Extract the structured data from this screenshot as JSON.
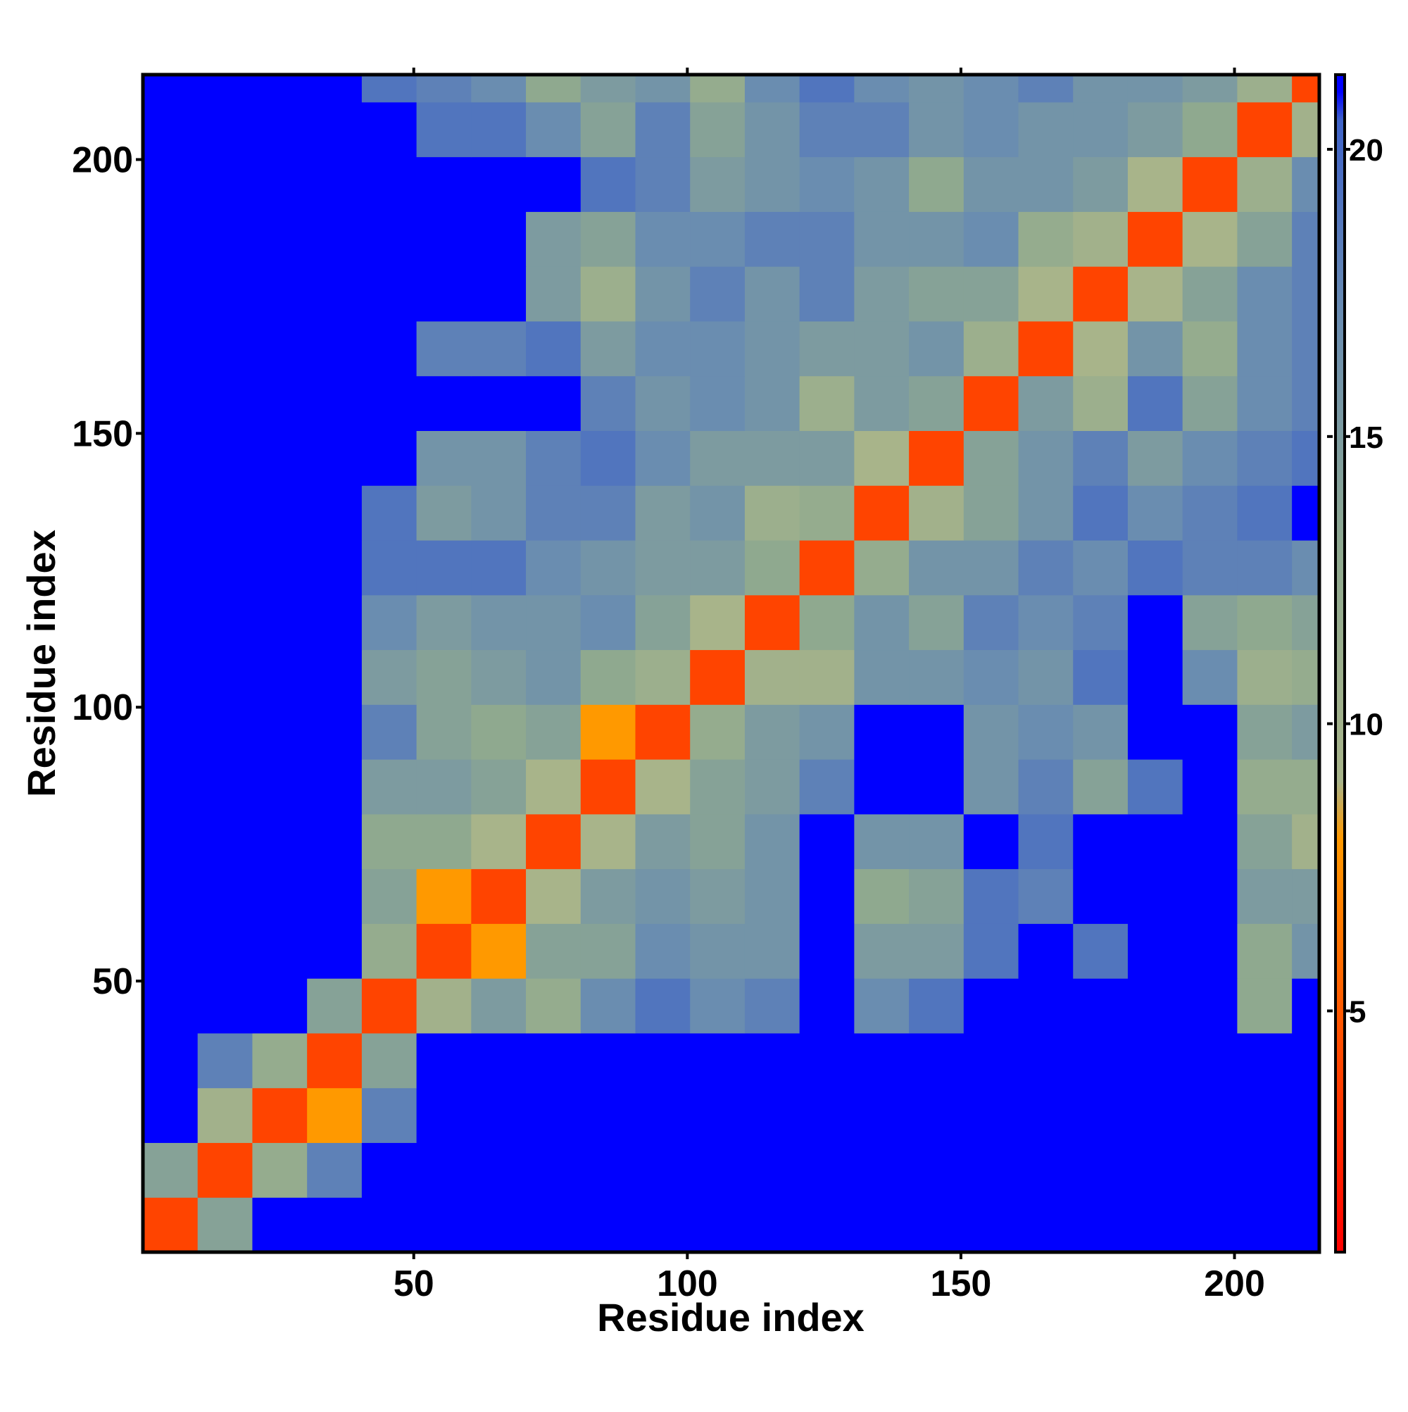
{
  "chart_data": {
    "type": "heatmap",
    "xlabel": "Residue index",
    "ylabel": "Residue index",
    "xlim": [
      0.5,
      215.5
    ],
    "ylim": [
      0.5,
      215.5
    ],
    "xticks": [
      50,
      100,
      150,
      200
    ],
    "yticks": [
      50,
      100,
      150,
      200
    ],
    "x_bins": [
      0.5,
      10.5,
      20.5,
      30.5,
      40.5,
      50.5,
      60.5,
      70.5,
      80.5,
      90.5,
      100.5,
      110.5,
      120.5,
      130.5,
      140.5,
      150.5,
      160.5,
      170.5,
      180.5,
      190.5,
      200.5,
      210.5,
      215.5
    ],
    "y_bins": [
      0.5,
      10.5,
      20.5,
      30.5,
      40.5,
      50.5,
      60.5,
      70.5,
      80.5,
      90.5,
      100.5,
      110.5,
      120.5,
      130.5,
      140.5,
      150.5,
      160.5,
      170.5,
      180.5,
      190.5,
      200.5,
      210.5,
      215.5
    ],
    "values": [
      [
        4,
        14,
        21,
        21,
        21,
        21,
        21,
        21,
        21,
        21,
        21,
        21,
        21,
        21,
        21,
        21,
        21,
        21,
        21,
        21,
        21,
        21
      ],
      [
        14,
        4,
        12,
        18,
        21,
        21,
        21,
        21,
        21,
        21,
        21,
        21,
        21,
        21,
        21,
        21,
        21,
        21,
        21,
        21,
        21,
        21
      ],
      [
        21,
        10,
        4,
        8,
        18,
        21,
        21,
        21,
        21,
        21,
        21,
        21,
        21,
        21,
        21,
        21,
        21,
        21,
        21,
        21,
        21,
        21
      ],
      [
        21,
        18,
        12,
        4,
        14,
        21,
        21,
        21,
        21,
        21,
        21,
        21,
        21,
        21,
        21,
        21,
        21,
        21,
        21,
        21,
        21,
        21
      ],
      [
        21,
        21,
        21,
        14,
        4,
        10,
        15,
        12,
        17,
        19,
        17,
        18,
        21,
        17,
        19,
        21,
        21,
        21,
        21,
        21,
        13,
        21
      ],
      [
        21,
        21,
        21,
        21,
        12,
        4,
        8,
        14,
        14,
        17,
        16,
        16,
        21,
        15,
        15,
        19,
        21,
        19,
        21,
        21,
        13,
        16
      ],
      [
        21,
        21,
        21,
        21,
        14,
        8,
        4,
        9,
        15,
        16,
        15,
        16,
        21,
        13,
        14,
        19,
        18,
        21,
        21,
        21,
        15,
        15
      ],
      [
        21,
        21,
        21,
        21,
        13,
        13,
        9,
        4,
        9,
        15,
        14,
        16,
        21,
        16,
        16,
        21,
        19,
        21,
        21,
        21,
        14,
        10
      ],
      [
        21,
        21,
        21,
        21,
        15,
        15,
        14,
        9,
        4,
        9,
        14,
        15,
        18,
        21,
        21,
        16,
        18,
        14,
        19,
        21,
        12,
        12
      ],
      [
        21,
        21,
        21,
        21,
        18,
        14,
        13,
        14,
        8,
        4,
        12,
        15,
        16,
        21,
        21,
        16,
        17,
        16,
        21,
        21,
        14,
        15
      ],
      [
        21,
        21,
        21,
        21,
        15,
        14,
        15,
        16,
        13,
        11,
        4,
        10,
        10,
        16,
        16,
        17,
        16,
        19,
        21,
        17,
        11,
        12
      ],
      [
        21,
        21,
        21,
        21,
        17,
        15,
        16,
        16,
        17,
        14,
        9,
        4,
        13,
        16,
        14,
        18,
        17,
        18,
        21,
        14,
        13,
        14
      ],
      [
        21,
        21,
        21,
        21,
        19,
        19,
        19,
        17,
        16,
        15,
        15,
        13,
        4,
        12,
        16,
        16,
        18,
        17,
        19,
        18,
        18,
        17
      ],
      [
        21,
        21,
        21,
        21,
        19,
        15,
        16,
        18,
        18,
        15,
        16,
        11,
        12,
        4,
        10,
        14,
        16,
        19,
        17,
        18,
        19,
        21
      ],
      [
        21,
        21,
        21,
        21,
        21,
        16,
        16,
        18,
        19,
        17,
        15,
        15,
        15,
        9,
        4,
        14,
        16,
        18,
        15,
        17,
        18,
        19
      ],
      [
        21,
        21,
        21,
        21,
        21,
        21,
        21,
        21,
        18,
        16,
        17,
        16,
        11,
        15,
        14,
        4,
        15,
        11,
        19,
        14,
        17,
        18
      ],
      [
        21,
        21,
        21,
        21,
        21,
        18,
        18,
        19,
        15,
        17,
        17,
        16,
        15,
        15,
        16,
        11,
        4,
        9,
        16,
        12,
        17,
        18
      ],
      [
        21,
        21,
        21,
        21,
        21,
        21,
        21,
        15,
        11,
        16,
        18,
        16,
        18,
        15,
        14,
        14,
        9,
        4,
        9,
        14,
        17,
        18
      ],
      [
        21,
        21,
        21,
        21,
        21,
        21,
        21,
        15,
        14,
        17,
        17,
        18,
        18,
        16,
        16,
        17,
        12,
        10,
        4,
        9,
        14,
        18
      ],
      [
        21,
        21,
        21,
        21,
        21,
        21,
        21,
        21,
        19,
        18,
        15,
        16,
        17,
        16,
        13,
        16,
        16,
        15,
        9,
        4,
        11,
        17
      ],
      [
        21,
        21,
        21,
        21,
        21,
        19,
        19,
        17,
        14,
        18,
        14,
        16,
        18,
        18,
        16,
        17,
        16,
        16,
        15,
        13,
        4,
        10
      ],
      [
        21,
        21,
        21,
        21,
        19,
        18,
        17,
        13,
        15,
        16,
        12,
        17,
        19,
        17,
        16,
        17,
        18,
        16,
        16,
        15,
        11,
        4
      ]
    ],
    "colorbar": {
      "lim": [
        0.8,
        21.3
      ],
      "ticks": [
        5,
        10,
        15,
        20
      ],
      "stops": [
        {
          "value": 0.8,
          "color": "#ff0000"
        },
        {
          "value": 4,
          "color": "#ff4400"
        },
        {
          "value": 8,
          "color": "#ff9900"
        },
        {
          "value": 9,
          "color": "#a8b48a"
        },
        {
          "value": 13,
          "color": "#8fa98f"
        },
        {
          "value": 17,
          "color": "#6a8db0"
        },
        {
          "value": 20.5,
          "color": "#3f63c8"
        },
        {
          "value": 21,
          "color": "#0000ff"
        }
      ]
    }
  }
}
